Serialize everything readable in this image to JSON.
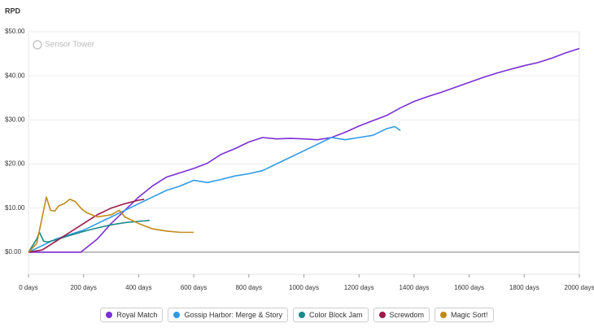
{
  "chart_data": {
    "type": "line",
    "title": "RPD",
    "watermark": "Sensor Tower",
    "grid": true,
    "xlim": [
      0,
      2000
    ],
    "ylim": [
      -5,
      50
    ],
    "xticks": [
      {
        "value": 0,
        "label": "0 days"
      },
      {
        "value": 200,
        "label": "200 days"
      },
      {
        "value": 400,
        "label": "400 days"
      },
      {
        "value": 600,
        "label": "600 days"
      },
      {
        "value": 800,
        "label": "800 days"
      },
      {
        "value": 1000,
        "label": "1000 days"
      },
      {
        "value": 1200,
        "label": "1200 days"
      },
      {
        "value": 1400,
        "label": "1400 days"
      },
      {
        "value": 1600,
        "label": "1600 days"
      },
      {
        "value": 1800,
        "label": "1800 days"
      },
      {
        "value": 2000,
        "label": "2000 days"
      }
    ],
    "yticks": [
      {
        "value": 0,
        "label": "$0.00"
      },
      {
        "value": 10,
        "label": "$10.00"
      },
      {
        "value": 20,
        "label": "$20.00"
      },
      {
        "value": 30,
        "label": "$30.00"
      },
      {
        "value": 40,
        "label": "$40.00"
      },
      {
        "value": 50,
        "label": "$50.00"
      }
    ],
    "series": [
      {
        "name": "Royal Match",
        "color": "#7b2fd6",
        "x": [
          0,
          190,
          250,
          300,
          350,
          400,
          450,
          500,
          550,
          600,
          650,
          700,
          750,
          800,
          850,
          900,
          950,
          1000,
          1050,
          1100,
          1150,
          1200,
          1250,
          1300,
          1350,
          1400,
          1450,
          1500,
          1550,
          1600,
          1650,
          1700,
          1750,
          1800,
          1850,
          1900,
          1950,
          2000
        ],
        "values": [
          0,
          0,
          3,
          6.5,
          9.5,
          12.5,
          15,
          17,
          18,
          19,
          20.2,
          22.2,
          23.5,
          25,
          26,
          25.7,
          25.8,
          25.7,
          25.5,
          26,
          27.2,
          28.6,
          29.8,
          31,
          32.7,
          34.2,
          35.3,
          36.3,
          37.4,
          38.5,
          39.6,
          40.6,
          41.5,
          42.3,
          43,
          44,
          45.2,
          46.2
        ]
      },
      {
        "name": "Gossip Harbor: Merge & Story",
        "color": "#2f9be8",
        "x": [
          0,
          50,
          100,
          200,
          300,
          400,
          450,
          500,
          550,
          600,
          650,
          700,
          750,
          800,
          850,
          900,
          950,
          1000,
          1050,
          1100,
          1150,
          1200,
          1250,
          1300,
          1330,
          1350
        ],
        "values": [
          0,
          1.5,
          3,
          5,
          8,
          11,
          12.5,
          14,
          15,
          16.3,
          15.8,
          16.5,
          17.3,
          17.8,
          18.5,
          20,
          21.5,
          23,
          24.5,
          26,
          25.5,
          26,
          26.5,
          28,
          28.5,
          27.6
        ]
      },
      {
        "name": "Color Block Jam",
        "color": "#1a8a8a",
        "x": [
          0,
          30,
          40,
          55,
          70,
          100,
          150,
          200,
          250,
          300,
          350,
          400,
          440
        ],
        "values": [
          0,
          3,
          4.5,
          2.5,
          2.3,
          2.8,
          3.8,
          4.7,
          5.5,
          6.2,
          6.7,
          7,
          7.2
        ]
      },
      {
        "name": "Screwdom",
        "color": "#9b1b4a",
        "x": [
          0,
          50,
          100,
          150,
          200,
          250,
          300,
          350,
          400,
          420
        ],
        "values": [
          0,
          0.5,
          2.5,
          4.5,
          6.5,
          8.5,
          10,
          11,
          11.8,
          12
        ]
      },
      {
        "name": "Magic Sort!",
        "color": "#c08a1a",
        "x": [
          0,
          30,
          50,
          65,
          80,
          95,
          110,
          130,
          150,
          170,
          190,
          210,
          250,
          300,
          330,
          350,
          400,
          450,
          500,
          550,
          600
        ],
        "values": [
          0,
          2,
          8,
          12.5,
          9.5,
          9.3,
          10.5,
          11,
          12,
          11.5,
          10,
          9,
          8,
          8.5,
          9.5,
          8,
          6.5,
          5.3,
          4.8,
          4.5,
          4.5
        ]
      }
    ]
  }
}
